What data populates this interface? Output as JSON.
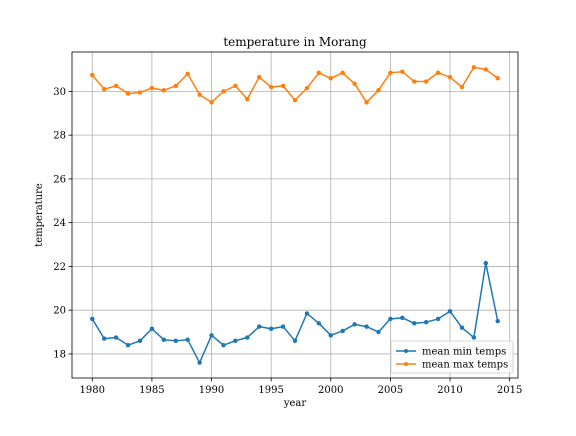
{
  "chart_data": {
    "type": "line",
    "title": "temperature in Morang",
    "xlabel": "year",
    "ylabel": "temperature",
    "xlim": [
      1978.3,
      2015.7
    ],
    "ylim": [
      16.9,
      31.8
    ],
    "x_ticks": [
      1980,
      1985,
      1990,
      1995,
      2000,
      2005,
      2010,
      2015
    ],
    "y_ticks": [
      18,
      20,
      22,
      24,
      26,
      28,
      30
    ],
    "grid": true,
    "legend_position": "lower right",
    "x": [
      1980,
      1981,
      1982,
      1983,
      1984,
      1985,
      1986,
      1987,
      1988,
      1989,
      1990,
      1991,
      1992,
      1993,
      1994,
      1995,
      1996,
      1997,
      1998,
      1999,
      2000,
      2001,
      2002,
      2003,
      2004,
      2005,
      2006,
      2007,
      2008,
      2009,
      2010,
      2011,
      2012,
      2013,
      2014
    ],
    "series": [
      {
        "name": "mean min temps",
        "color": "#1f77b4",
        "values": [
          19.6,
          18.7,
          18.75,
          18.4,
          18.6,
          19.15,
          18.65,
          18.6,
          18.65,
          17.6,
          18.85,
          18.4,
          18.6,
          18.75,
          19.25,
          19.15,
          19.25,
          18.6,
          19.85,
          19.4,
          18.85,
          19.05,
          19.35,
          19.25,
          19.0,
          19.6,
          19.65,
          19.4,
          19.45,
          19.6,
          19.95,
          19.2,
          18.75,
          22.15,
          19.5
        ]
      },
      {
        "name": "mean max temps",
        "color": "#ff7f0e",
        "values": [
          30.75,
          30.1,
          30.25,
          29.9,
          29.95,
          30.15,
          30.05,
          30.25,
          30.8,
          29.85,
          29.5,
          30.0,
          30.25,
          29.65,
          30.65,
          30.2,
          30.25,
          29.6,
          30.15,
          30.85,
          30.6,
          30.85,
          30.35,
          29.5,
          30.05,
          30.85,
          30.9,
          30.45,
          30.45,
          30.85,
          30.65,
          30.2,
          31.1,
          31.0,
          30.6
        ]
      }
    ]
  }
}
